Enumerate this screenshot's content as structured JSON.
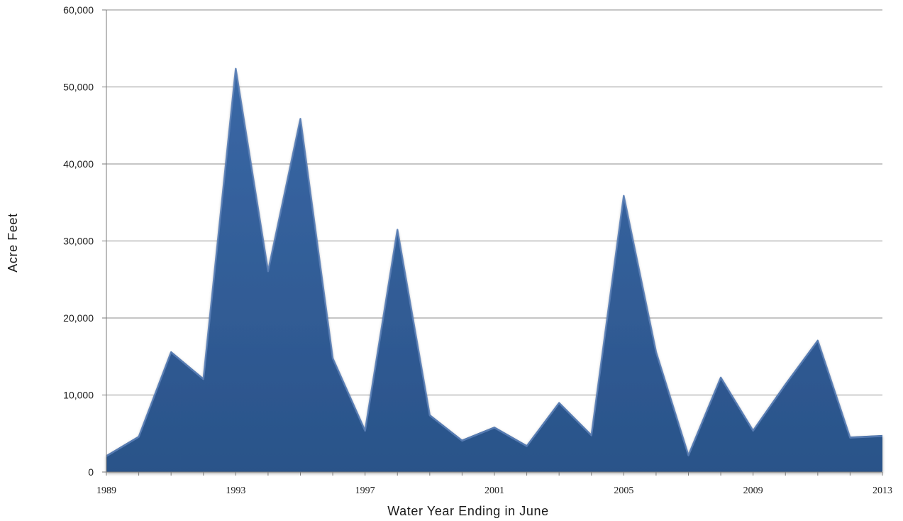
{
  "chart_data": {
    "type": "area",
    "title": "",
    "xlabel": "Water Year Ending in June",
    "ylabel": "Acre Feet",
    "x": [
      1989,
      1990,
      1991,
      1992,
      1993,
      1994,
      1995,
      1996,
      1997,
      1998,
      1999,
      2000,
      2001,
      2002,
      2003,
      2004,
      2005,
      2006,
      2007,
      2008,
      2009,
      2010,
      2011,
      2012,
      2013
    ],
    "series": [
      {
        "name": "",
        "values": [
          2200,
          4700,
          15700,
          12200,
          52500,
          26200,
          46000,
          14900,
          5500,
          31600,
          7500,
          4200,
          5900,
          3500,
          9100,
          4900,
          36000,
          15700,
          2300,
          12400,
          5500,
          11500,
          17200,
          4600,
          4800
        ]
      }
    ],
    "xtick_labels": [
      "1989",
      "1993",
      "1997",
      "2001",
      "2005",
      "2009",
      "2013"
    ],
    "ytick_labels": [
      "0",
      "10,000",
      "20,000",
      "30,000",
      "40,000",
      "50,000",
      "60,000"
    ],
    "yticks": [
      0,
      10000,
      20000,
      30000,
      40000,
      50000,
      60000
    ],
    "xlim": [
      1989,
      2013
    ],
    "ylim": [
      0,
      60000
    ],
    "grid": true,
    "legend": "none",
    "colors": {
      "fill": "#2a5389",
      "fill_light": "#3a68a6",
      "edge": "#5b7fb6",
      "grid": "#8c8c8c"
    }
  }
}
